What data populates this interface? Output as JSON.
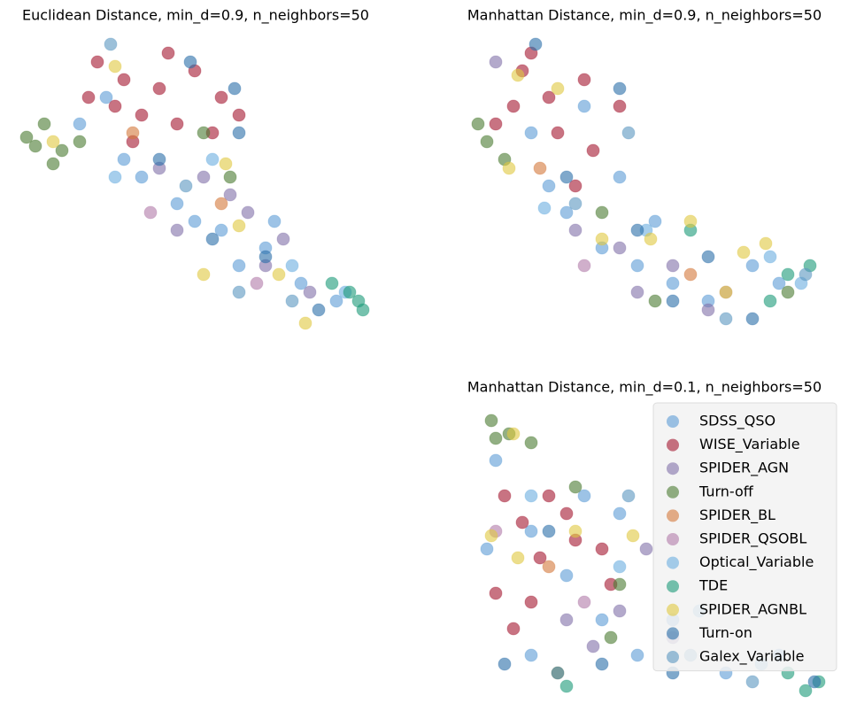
{
  "chart_data": [
    {
      "type": "scatter",
      "title": "Euclidean Distance, min_d=0.9, n_neighbors=50",
      "xlim": [
        0,
        410
      ],
      "ylim": [
        0,
        340
      ],
      "series": [
        {
          "color": "#5b9bd5",
          "x": [
            102,
            142,
            182,
            232,
            282,
            322,
            362,
            122,
            202,
            252,
            72,
            292
          ],
          "y": [
            268,
            178,
            148,
            118,
            98,
            58,
            38,
            198,
            128,
            78,
            238,
            128
          ]
        },
        {
          "color": "#a3152e",
          "x": [
            92,
            122,
            162,
            202,
            232,
            142,
            182,
            112,
            222,
            172,
            82,
            252,
            132
          ],
          "y": [
            308,
            288,
            278,
            298,
            268,
            248,
            238,
            258,
            228,
            318,
            268,
            248,
            218
          ]
        },
        {
          "color": "#8070a8",
          "x": [
            162,
            212,
            262,
            282,
            302,
            242,
            332,
            182
          ],
          "y": [
            188,
            178,
            138,
            78,
            108,
            158,
            48,
            118
          ]
        },
        {
          "color": "#4a7a30",
          "x": [
            12,
            32,
            52,
            72,
            42,
            22,
            212,
            242
          ],
          "y": [
            223,
            238,
            208,
            218,
            193,
            213,
            228,
            178
          ]
        },
        {
          "color": "#d4783a",
          "x": [
            132,
            232
          ],
          "y": [
            228,
            148
          ]
        },
        {
          "color": "#b07aa8",
          "x": [
            272,
            152
          ],
          "y": [
            58,
            138
          ]
        },
        {
          "color": "#6aaee0",
          "x": [
            112,
            222,
            312,
            372
          ],
          "y": [
            178,
            198,
            78,
            48
          ]
        },
        {
          "color": "#1a9a78",
          "x": [
            387,
            392,
            357,
            377
          ],
          "y": [
            38,
            28,
            58,
            48
          ]
        },
        {
          "color": "#e0c840",
          "x": [
            112,
            42,
            237,
            252,
            297,
            327,
            212
          ],
          "y": [
            303,
            218,
            193,
            123,
            68,
            13,
            68
          ]
        },
        {
          "color": "#2a6ea8",
          "x": [
            197,
            247,
            162,
            222,
            282,
            342,
            252
          ],
          "y": [
            308,
            278,
            198,
            108,
            88,
            28,
            228
          ]
        },
        {
          "color": "#5a96c0",
          "x": [
            107,
            192,
            312,
            252
          ],
          "y": [
            328,
            168,
            38,
            48
          ]
        }
      ]
    },
    {
      "type": "scatter",
      "title": "Manhattan Distance, min_d=0.9, n_neighbors=50",
      "xlim": [
        0,
        410
      ],
      "ylim": [
        0,
        340
      ],
      "series": [
        {
          "color": "#5b9bd5",
          "x": [
            75,
            115,
            155,
            195,
            235,
            275,
            325,
            175,
            95,
            355,
            215,
            135
          ],
          "y": [
            228,
            138,
            98,
            78,
            58,
            38,
            78,
            178,
            168,
            58,
            128,
            258
          ]
        },
        {
          "color": "#a3152e",
          "x": [
            65,
            95,
            135,
            175,
            105,
            55,
            145,
            75,
            125,
            35
          ],
          "y": [
            298,
            268,
            288,
            258,
            228,
            258,
            208,
            318,
            168,
            238
          ]
        },
        {
          "color": "#8070a8",
          "x": [
            35,
            175,
            235,
            275,
            125,
            195
          ],
          "y": [
            308,
            98,
            78,
            28,
            118,
            48
          ]
        },
        {
          "color": "#4a7a30",
          "x": [
            15,
            25,
            45,
            215,
            365,
            155
          ],
          "y": [
            238,
            218,
            198,
            38,
            48,
            138
          ]
        },
        {
          "color": "#d4783a",
          "x": [
            85,
            255
          ],
          "y": [
            188,
            68
          ]
        },
        {
          "color": "#b07aa8",
          "x": [
            135,
            295
          ],
          "y": [
            78,
            48
          ]
        },
        {
          "color": "#6aaee0",
          "x": [
            90,
            205,
            345,
            380
          ],
          "y": [
            143,
            118,
            88,
            58
          ]
        },
        {
          "color": "#1a9a78",
          "x": [
            390,
            365,
            345,
            255
          ],
          "y": [
            78,
            68,
            38,
            118
          ]
        },
        {
          "color": "#e0c840",
          "x": [
            60,
            105,
            50,
            155,
            210,
            255,
            315,
            295,
            340
          ],
          "y": [
            293,
            278,
            188,
            108,
            108,
            128,
            93,
            48,
            103
          ]
        },
        {
          "color": "#2a6ea8",
          "x": [
            80,
            175,
            115,
            195,
            275,
            325,
            235
          ],
          "y": [
            328,
            278,
            178,
            118,
            88,
            18,
            38
          ]
        },
        {
          "color": "#5a96c0",
          "x": [
            185,
            125,
            295,
            385
          ],
          "y": [
            228,
            148,
            18,
            68
          ]
        }
      ]
    },
    {
      "type": "scatter",
      "title": "Manhattan Distance, min_d=0.1, n_neighbors=50",
      "xlim": [
        0,
        410
      ],
      "ylim": [
        0,
        340
      ],
      "legend": "upper right",
      "series": [
        {
          "name": "SDSS_QSO",
          "color": "#5b9bd5",
          "x": [
            35,
            75,
            115,
            155,
            195,
            235,
            295,
            355,
            175,
            25,
            75,
            135
          ],
          "y": [
            275,
            195,
            145,
            95,
            55,
            95,
            35,
            55,
            215,
            175,
            55,
            235
          ]
        },
        {
          "name": "WISE_Variable",
          "color": "#a3152e",
          "x": [
            45,
            65,
            85,
            35,
            115,
            155,
            75,
            125,
            55,
            95,
            165
          ],
          "y": [
            235,
            205,
            165,
            125,
            215,
            175,
            115,
            185,
            85,
            235,
            135
          ]
        },
        {
          "name": "SPIDER_AGN",
          "color": "#8070a8",
          "x": [
            115,
            175,
            235,
            205,
            145
          ],
          "y": [
            95,
            105,
            75,
            175,
            65
          ]
        },
        {
          "name": "Turn-off",
          "color": "#4a7a30",
          "x": [
            30,
            35,
            50,
            75,
            125,
            175,
            165
          ],
          "y": [
            320,
            300,
            305,
            295,
            245,
            135,
            75
          ]
        },
        {
          "name": "SPIDER_BL",
          "color": "#d4783a",
          "x": [
            95
          ],
          "y": [
            155
          ]
        },
        {
          "name": "SPIDER_QSOBL",
          "color": "#b07aa8",
          "x": [
            135,
            35
          ],
          "y": [
            115,
            195
          ]
        },
        {
          "name": "Optical_Variable",
          "color": "#6aaee0",
          "x": [
            75,
            175,
            265,
            335
          ],
          "y": [
            235,
            155,
            105,
            45
          ]
        },
        {
          "name": "TDE",
          "color": "#1a9a78",
          "x": [
            385,
            400,
            115,
            365
          ],
          "y": [
            15,
            25,
            20,
            35
          ]
        },
        {
          "name": "SPIDER_AGNBL",
          "color": "#e0c840",
          "x": [
            55,
            30,
            60,
            190,
            105,
            125
          ],
          "y": [
            305,
            190,
            165,
            190,
            35,
            195
          ]
        },
        {
          "name": "Turn-on",
          "color": "#2a6ea8",
          "x": [
            95,
            155,
            105,
            235,
            395,
            45
          ],
          "y": [
            195,
            45,
            35,
            35,
            25,
            45
          ]
        },
        {
          "name": "Galex_Variable",
          "color": "#5a96c0",
          "x": [
            185,
            255,
            325
          ],
          "y": [
            235,
            55,
            25
          ]
        }
      ]
    }
  ]
}
